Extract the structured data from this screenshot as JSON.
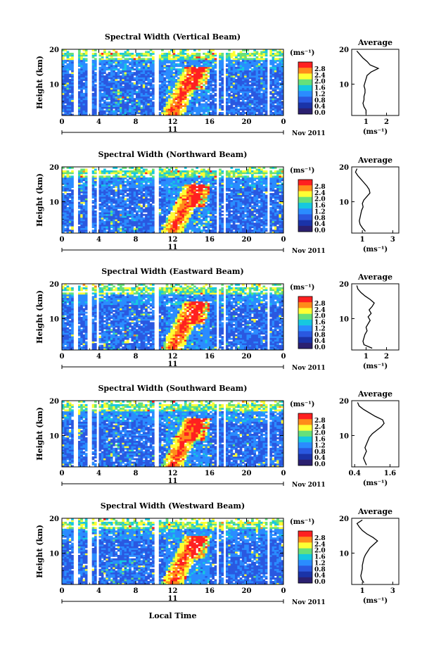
{
  "colorbar": {
    "unit": "(ms⁻¹)",
    "ticks": [
      "2.8",
      "2.4",
      "2.0",
      "1.6",
      "1.2",
      "0.8",
      "0.4",
      "0.0"
    ],
    "colors": [
      "#ff2020",
      "#ff8c1a",
      "#ffff33",
      "#66e07a",
      "#16c8e0",
      "#2a8cff",
      "#2a58e0",
      "#1a33a8",
      "#2b2070"
    ]
  },
  "x_tick_labels": [
    "0",
    "4",
    "8",
    "12",
    "16",
    "20",
    "0"
  ],
  "date_label": "11",
  "month_label": "Nov 2011",
  "xlabel": "Local Time",
  "ylabel": "Height (km)",
  "y_tick_labels": [
    "20",
    "10"
  ],
  "avg_title": "Average",
  "avg_xlabel": "(ms⁻¹)",
  "chart_data": [
    {
      "type": "heatmap",
      "title": "Spectral Width (Vertical Beam)",
      "xlabel": "Local Time",
      "ylabel": "Height (km)",
      "xlim": [
        0,
        24
      ],
      "ylim": [
        1,
        20
      ],
      "clim": [
        0,
        3.0
      ],
      "x_ticks": [
        0,
        4,
        8,
        12,
        16,
        20,
        24
      ],
      "y_ticks": [
        10,
        20
      ],
      "average_profile": {
        "title": "Average",
        "xlabel": "(ms⁻¹)",
        "xlim": [
          0.3,
          2.6
        ],
        "x_ticks": [
          1,
          2
        ],
        "x_tick_labels": [
          "1",
          "2"
        ],
        "height_km": [
          1.5,
          2.5,
          3.5,
          4.5,
          5.5,
          6.5,
          7.5,
          8.5,
          9.5,
          10.5,
          11.5,
          12.5,
          13.5,
          14.5,
          15.5,
          16.5,
          17.5,
          18.5,
          19.5
        ],
        "width": [
          1.0,
          1.0,
          0.9,
          0.85,
          0.9,
          0.9,
          0.95,
          0.95,
          0.9,
          0.95,
          1.0,
          1.05,
          1.25,
          1.6,
          1.2,
          1.05,
          0.85,
          0.7,
          0.55
        ]
      }
    },
    {
      "type": "heatmap",
      "title": "Spectral Width (Northward Beam)",
      "xlabel": "Local Time",
      "ylabel": "Height (km)",
      "xlim": [
        0,
        24
      ],
      "ylim": [
        1,
        20
      ],
      "clim": [
        0,
        3.0
      ],
      "x_ticks": [
        0,
        4,
        8,
        12,
        16,
        20,
        24
      ],
      "y_ticks": [
        10,
        20
      ],
      "average_profile": {
        "title": "Average",
        "xlabel": "(ms⁻¹)",
        "xlim": [
          0.3,
          3.4
        ],
        "x_ticks": [
          1,
          3
        ],
        "x_tick_labels": [
          "1",
          "3"
        ],
        "height_km": [
          1.5,
          2.5,
          3.5,
          4.5,
          5.5,
          6.5,
          7.5,
          8.5,
          9.5,
          10.5,
          11.5,
          12.5,
          13.5,
          14.5,
          15.5,
          16.5,
          17.5,
          18.5,
          19.5
        ],
        "width": [
          1.2,
          1.0,
          0.85,
          0.8,
          0.85,
          0.9,
          0.95,
          1.05,
          1.0,
          1.1,
          1.3,
          1.5,
          1.45,
          1.3,
          1.1,
          0.9,
          0.7,
          0.55,
          0.65
        ]
      }
    },
    {
      "type": "heatmap",
      "title": "Spectral Width (Eastward Beam)",
      "xlabel": "Local Time",
      "ylabel": "Height (km)",
      "xlim": [
        0,
        24
      ],
      "ylim": [
        1,
        20
      ],
      "clim": [
        0,
        3.0
      ],
      "x_ticks": [
        0,
        4,
        8,
        12,
        16,
        20,
        24
      ],
      "y_ticks": [
        10,
        20
      ],
      "average_profile": {
        "title": "Average",
        "xlabel": "(ms⁻¹)",
        "xlim": [
          0.3,
          2.6
        ],
        "x_ticks": [
          1,
          2
        ],
        "x_tick_labels": [
          "1",
          "2"
        ],
        "height_km": [
          1.5,
          2.5,
          3.5,
          4.5,
          5.5,
          6.5,
          7.5,
          8.5,
          9.5,
          10.5,
          11.5,
          12.5,
          13.5,
          14.5,
          15.5,
          16.5,
          17.5,
          18.5,
          19.5
        ],
        "width": [
          1.3,
          0.9,
          0.85,
          0.9,
          0.95,
          1.05,
          1.0,
          1.1,
          1.2,
          1.1,
          1.25,
          1.15,
          1.3,
          1.4,
          1.2,
          0.95,
          0.75,
          0.6,
          0.55
        ]
      }
    },
    {
      "type": "heatmap",
      "title": "Spectral Width (Southward Beam)",
      "xlabel": "Local Time",
      "ylabel": "Height (km)",
      "xlim": [
        0,
        24
      ],
      "ylim": [
        1,
        20
      ],
      "clim": [
        0,
        3.0
      ],
      "x_ticks": [
        0,
        4,
        8,
        12,
        16,
        20,
        24
      ],
      "y_ticks": [
        10,
        20
      ],
      "average_profile": {
        "title": "Average",
        "xlabel": "(ms⁻¹)",
        "xlim": [
          0.3,
          1.9
        ],
        "x_ticks": [
          0.4,
          1.6
        ],
        "x_tick_labels": [
          "0.4",
          "1.6"
        ],
        "height_km": [
          1.5,
          2.5,
          3.5,
          4.5,
          5.5,
          6.5,
          7.5,
          8.5,
          9.5,
          10.5,
          11.5,
          12.5,
          13.5,
          14.5,
          15.5,
          16.5,
          17.5,
          18.5,
          19.5
        ],
        "width": [
          0.8,
          0.75,
          0.7,
          0.75,
          0.8,
          0.75,
          0.8,
          0.85,
          0.9,
          1.0,
          1.15,
          1.3,
          1.4,
          1.35,
          1.1,
          0.9,
          0.7,
          0.55,
          0.5
        ]
      }
    },
    {
      "type": "heatmap",
      "title": "Spectral Width (Westward Beam)",
      "xlabel": "Local Time",
      "ylabel": "Height (km)",
      "xlim": [
        0,
        24
      ],
      "ylim": [
        1,
        20
      ],
      "clim": [
        0,
        3.0
      ],
      "x_ticks": [
        0,
        4,
        8,
        12,
        16,
        20,
        24
      ],
      "y_ticks": [
        10,
        20
      ],
      "average_profile": {
        "title": "Average",
        "xlabel": "(ms⁻¹)",
        "xlim": [
          0.3,
          3.4
        ],
        "x_ticks": [
          1,
          3
        ],
        "x_tick_labels": [
          "1",
          "3"
        ],
        "height_km": [
          1.5,
          2.5,
          3.5,
          4.5,
          5.5,
          6.5,
          7.5,
          8.5,
          9.5,
          10.5,
          11.5,
          12.5,
          13.5,
          14.5,
          15.5,
          16.5,
          17.5,
          18.5,
          19.5
        ],
        "width": [
          1.1,
          0.95,
          0.9,
          0.95,
          1.0,
          1.0,
          1.05,
          1.1,
          1.2,
          1.35,
          1.5,
          1.75,
          2.0,
          1.7,
          1.3,
          1.0,
          0.8,
          0.65,
          1.0
        ]
      }
    }
  ]
}
